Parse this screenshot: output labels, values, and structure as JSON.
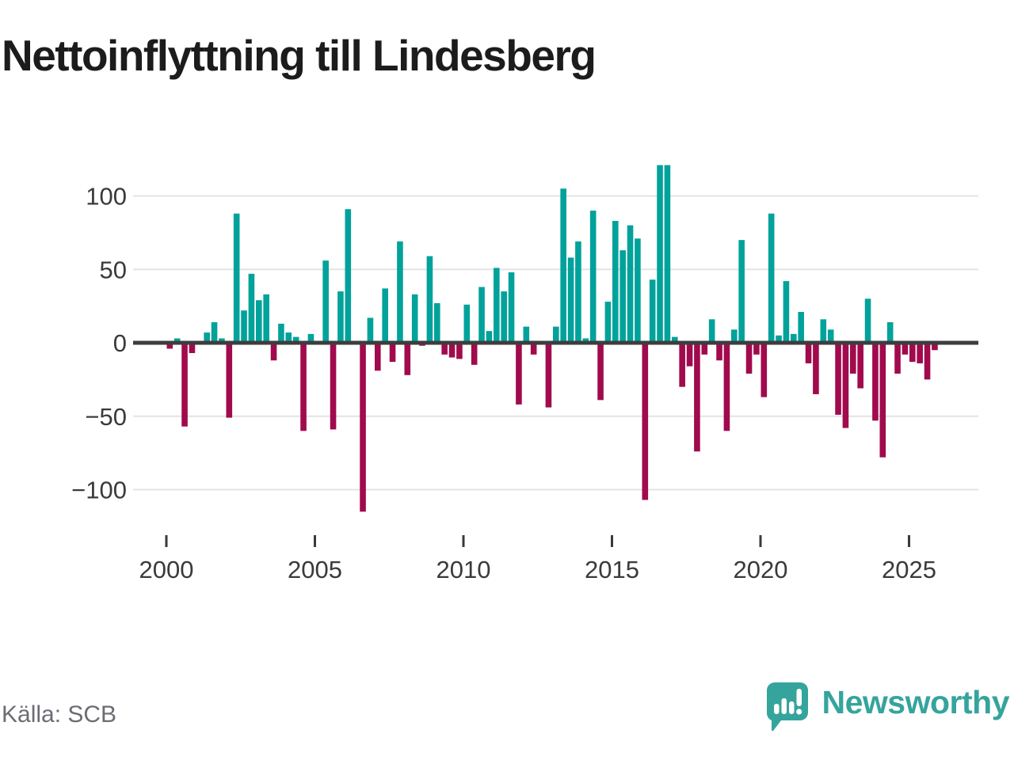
{
  "title": "Nettoinflyttning till Lindesberg",
  "source": {
    "label": "Källa: SCB"
  },
  "branding": {
    "name": "Newsworthy",
    "icon": "newsworthy-speech-bubble-barchart-icon",
    "color": "#35a49d"
  },
  "colors": {
    "positive_bar": "#00a29b",
    "negative_bar": "#a10a4d",
    "zero_line": "#3d3d3d",
    "gridline": "#e3e3e3",
    "axis_text": "#3a3a3a",
    "title_text": "#1c1c1c",
    "source_text": "#6c6c75",
    "background": "#ffffff"
  },
  "chart_data": {
    "type": "bar",
    "title": "Nettoinflyttning till Lindesberg",
    "ylabel": "",
    "xlabel": "",
    "frequency": "quarterly",
    "x_start": "2000 Q1",
    "x_end": "2025 Q4",
    "grid": "horizontal",
    "legend": "none",
    "ylim": [
      -122,
      128
    ],
    "yticks": [
      100,
      50,
      0,
      -50,
      -100
    ],
    "ytick_labels": [
      "100",
      "50",
      "0",
      "−50",
      "−100"
    ],
    "xtick_years": [
      2000,
      2005,
      2010,
      2015,
      2020,
      2025
    ],
    "xtick_labels": [
      "2000",
      "2005",
      "2010",
      "2015",
      "2020",
      "2025"
    ],
    "categories": [
      "2000 Q1",
      "2000 Q2",
      "2000 Q3",
      "2000 Q4",
      "2001 Q1",
      "2001 Q2",
      "2001 Q3",
      "2001 Q4",
      "2002 Q1",
      "2002 Q2",
      "2002 Q3",
      "2002 Q4",
      "2003 Q1",
      "2003 Q2",
      "2003 Q3",
      "2003 Q4",
      "2004 Q1",
      "2004 Q2",
      "2004 Q3",
      "2004 Q4",
      "2005 Q1",
      "2005 Q2",
      "2005 Q3",
      "2005 Q4",
      "2006 Q1",
      "2006 Q2",
      "2006 Q3",
      "2006 Q4",
      "2007 Q1",
      "2007 Q2",
      "2007 Q3",
      "2007 Q4",
      "2008 Q1",
      "2008 Q2",
      "2008 Q3",
      "2008 Q4",
      "2009 Q1",
      "2009 Q2",
      "2009 Q3",
      "2009 Q4",
      "2010 Q1",
      "2010 Q2",
      "2010 Q3",
      "2010 Q4",
      "2011 Q1",
      "2011 Q2",
      "2011 Q3",
      "2011 Q4",
      "2012 Q1",
      "2012 Q2",
      "2012 Q3",
      "2012 Q4",
      "2013 Q1",
      "2013 Q2",
      "2013 Q3",
      "2013 Q4",
      "2014 Q1",
      "2014 Q2",
      "2014 Q3",
      "2014 Q4",
      "2015 Q1",
      "2015 Q2",
      "2015 Q3",
      "2015 Q4",
      "2016 Q1",
      "2016 Q2",
      "2016 Q3",
      "2016 Q4",
      "2017 Q1",
      "2017 Q2",
      "2017 Q3",
      "2017 Q4",
      "2018 Q1",
      "2018 Q2",
      "2018 Q3",
      "2018 Q4",
      "2019 Q1",
      "2019 Q2",
      "2019 Q3",
      "2019 Q4",
      "2020 Q1",
      "2020 Q2",
      "2020 Q3",
      "2020 Q4",
      "2021 Q1",
      "2021 Q2",
      "2021 Q3",
      "2021 Q4",
      "2022 Q1",
      "2022 Q2",
      "2022 Q3",
      "2022 Q4",
      "2023 Q1",
      "2023 Q2",
      "2023 Q3",
      "2023 Q4",
      "2024 Q1",
      "2024 Q2",
      "2024 Q3",
      "2024 Q4",
      "2025 Q1",
      "2025 Q2",
      "2025 Q3",
      "2025 Q4"
    ],
    "values": [
      -4,
      3,
      -57,
      -7,
      1,
      7,
      14,
      3,
      -51,
      88,
      22,
      47,
      29,
      33,
      -12,
      13,
      7,
      4,
      -60,
      6,
      0,
      56,
      -59,
      35,
      91,
      0,
      -115,
      17,
      -19,
      37,
      -13,
      69,
      -22,
      33,
      -2,
      59,
      27,
      -8,
      -10,
      -11,
      26,
      -15,
      38,
      8,
      51,
      35,
      48,
      -42,
      11,
      -8,
      0,
      -44,
      11,
      105,
      58,
      69,
      3,
      90,
      -39,
      28,
      83,
      63,
      80,
      71,
      -107,
      43,
      121,
      121,
      4,
      -30,
      -16,
      -74,
      -8,
      16,
      -12,
      -60,
      9,
      70,
      -21,
      -8,
      -37,
      88,
      5,
      42,
      6,
      21,
      -14,
      -35,
      16,
      9,
      -49,
      -58,
      -21,
      -31,
      30,
      -53,
      -78,
      14,
      -21,
      -8,
      -13,
      -14,
      -25,
      -5
    ]
  }
}
